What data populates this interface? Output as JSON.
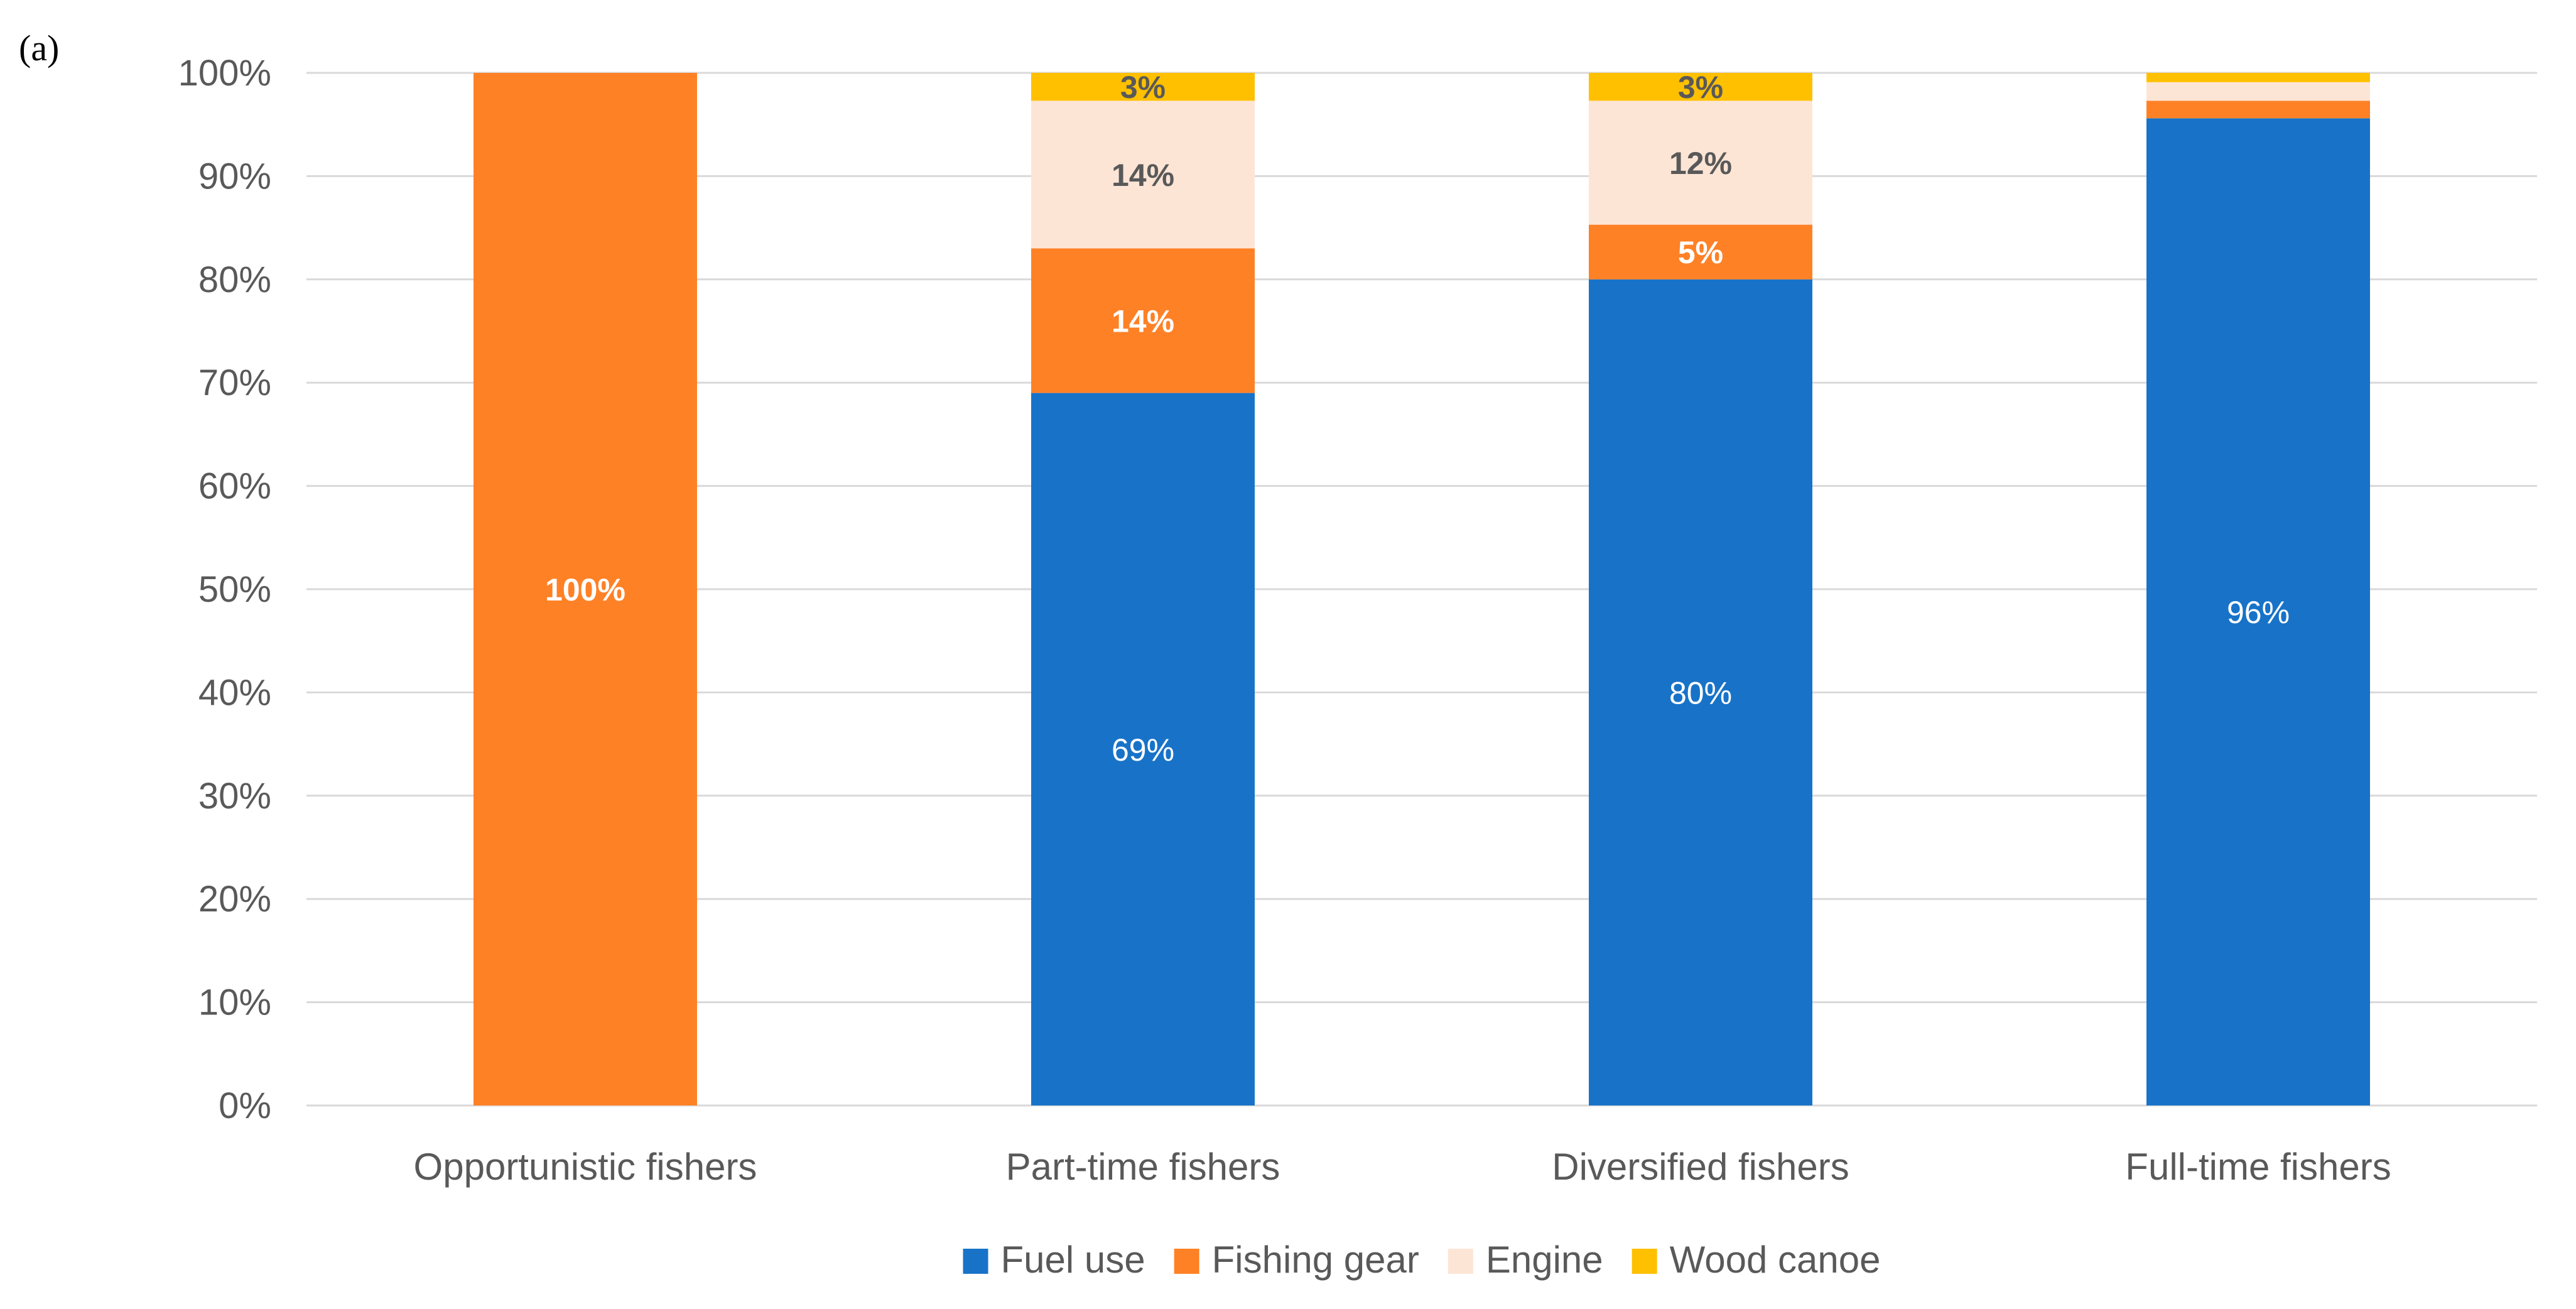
{
  "panel_label": "(a)",
  "chart_data": {
    "type": "bar",
    "stacked": true,
    "title": "",
    "xlabel": "",
    "ylabel": "",
    "ylim": [
      0,
      100
    ],
    "yticks": [
      0,
      10,
      20,
      30,
      40,
      50,
      60,
      70,
      80,
      90,
      100
    ],
    "ytick_labels": [
      "0%",
      "10%",
      "20%",
      "30%",
      "40%",
      "50%",
      "60%",
      "70%",
      "80%",
      "90%",
      "100%"
    ],
    "grid": true,
    "legend_position": "bottom",
    "categories": [
      "Opportunistic fishers",
      "Part-time fishers",
      "Diversified fishers",
      "Full-time fishers"
    ],
    "series": [
      {
        "name": "Fuel use",
        "color": "#1873C8",
        "values": [
          0,
          69,
          80,
          95.6
        ],
        "labels": [
          null,
          "69%",
          "80%",
          "96%"
        ],
        "label_color": "#ffffff",
        "label_bold": false
      },
      {
        "name": "Fishing gear",
        "color": "#FF8126",
        "values": [
          100,
          14,
          5.3,
          1.7
        ],
        "labels": [
          "100%",
          "14%",
          "5%",
          null
        ],
        "label_color": "#ffffff",
        "label_bold": true
      },
      {
        "name": "Engine",
        "color": "#FDE5D6",
        "values": [
          0,
          14.3,
          12,
          1.8
        ],
        "labels": [
          null,
          "14%",
          "12%",
          null
        ],
        "label_color": "#595959",
        "label_bold": true
      },
      {
        "name": "Wood canoe",
        "color": "#FFC000",
        "values": [
          0,
          2.7,
          2.7,
          0.9
        ],
        "labels": [
          null,
          "3%",
          "3%",
          null
        ],
        "label_color": "#595959",
        "label_bold": true
      }
    ]
  },
  "colors": {
    "axis_text": "#595959",
    "gridline": "#D9D9D9",
    "panel_label": "#000000"
  }
}
